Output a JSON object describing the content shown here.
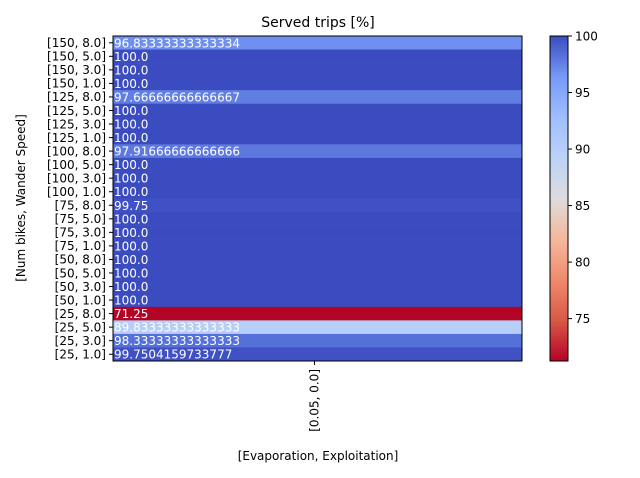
{
  "chart_data": {
    "type": "heatmap",
    "title": "Served trips [%]",
    "xlabel": "[Evaporation, Exploitation]",
    "ylabel": "[Num bikes, Wander Speed]",
    "x_categories": [
      "[0.05, 0.0]"
    ],
    "y_categories": [
      "[150, 8.0]",
      "[150, 5.0]",
      "[150, 3.0]",
      "[150, 1.0]",
      "[125, 8.0]",
      "[125, 5.0]",
      "[125, 3.0]",
      "[125, 1.0]",
      "[100, 8.0]",
      "[100, 5.0]",
      "[100, 3.0]",
      "[100, 1.0]",
      "[75, 8.0]",
      "[75, 5.0]",
      "[75, 3.0]",
      "[75, 1.0]",
      "[50, 8.0]",
      "[50, 5.0]",
      "[50, 3.0]",
      "[50, 1.0]",
      "[25, 8.0]",
      "[25, 5.0]",
      "[25, 3.0]",
      "[25, 1.0]"
    ],
    "values": [
      96.83333333333334,
      100.0,
      100.0,
      100.0,
      97.66666666666667,
      100.0,
      100.0,
      100.0,
      97.91666666666666,
      100.0,
      100.0,
      100.0,
      99.75,
      100.0,
      100.0,
      100.0,
      100.0,
      100.0,
      100.0,
      100.0,
      71.25,
      89.83333333333333,
      98.33333333333333,
      99.7504159733777
    ],
    "value_labels": [
      "96.83333333333334",
      "100.0",
      "100.0",
      "100.0",
      "97.66666666666667",
      "100.0",
      "100.0",
      "100.0",
      "97.91666666666666",
      "100.0",
      "100.0",
      "100.0",
      "99.75",
      "100.0",
      "100.0",
      "100.0",
      "100.0",
      "100.0",
      "100.0",
      "100.0",
      "71.25",
      "89.83333333333333",
      "98.33333333333333",
      "99.7504159733777"
    ],
    "colormap": "coolwarm",
    "vmin": 71.25,
    "vmax": 100.0,
    "colorbar_ticks": [
      75,
      80,
      85,
      90,
      95,
      100
    ],
    "colorbar_tick_labels": [
      "75",
      "80",
      "85",
      "90",
      "95",
      "100"
    ]
  }
}
